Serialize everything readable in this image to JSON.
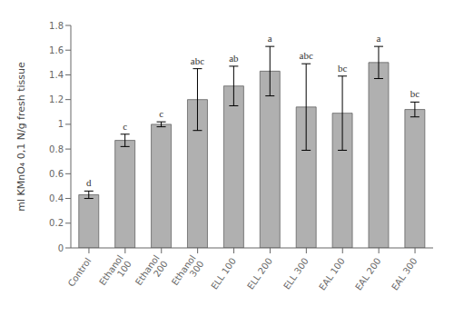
{
  "chart_data": {
    "type": "bar",
    "categories": [
      "Control",
      "Ethanol\n100",
      "Ethanol\n200",
      "Ethanol\n300",
      "ELL 100",
      "ELL 200",
      "ELL 300",
      "EAL 100",
      "EAL 200",
      "EAL 300"
    ],
    "values": [
      0.43,
      0.87,
      1.0,
      1.2,
      1.31,
      1.43,
      1.14,
      1.09,
      1.5,
      1.12
    ],
    "errors": [
      0.03,
      0.05,
      0.02,
      0.25,
      0.16,
      0.2,
      0.35,
      0.3,
      0.13,
      0.06
    ],
    "annotations": [
      "d",
      "c",
      "c",
      "abc",
      "ab",
      "a",
      "abc",
      "bc",
      "a",
      "bc"
    ],
    "ylabel": "ml KMnO₄ 0,1 N/g fresh tissue",
    "ylim": [
      0,
      1.8
    ],
    "yticks": [
      0,
      0.2,
      0.4,
      0.6,
      0.8,
      1,
      1.2,
      1.4,
      1.6,
      1.8
    ],
    "color": "#b0b0b0",
    "grid": false
  }
}
